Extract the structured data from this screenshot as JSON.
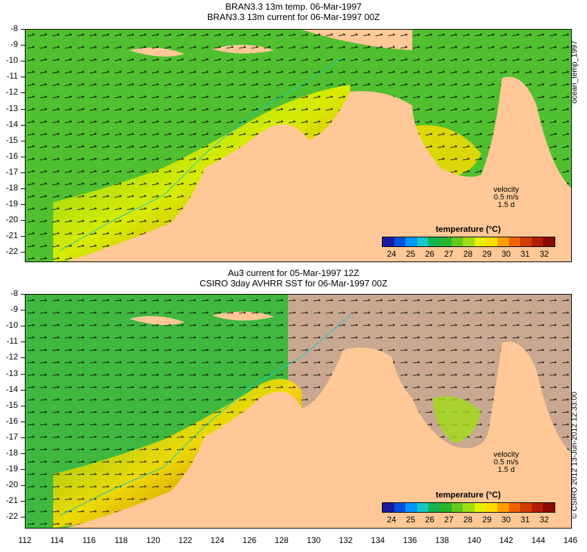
{
  "top": {
    "title1": "BRAN3.3 13m temp. 06-Mar-1997",
    "title2": "BRAN3.3 13m current for 06-Mar-1997 00Z",
    "side_label": "ocean_temp_1997",
    "velocity": {
      "label": "velocity",
      "scale": "0.5 m/s",
      "duration": "1.5 d"
    },
    "colorbar_title": "temperature (°C)"
  },
  "bottom": {
    "title1": "Au3 current for 05-Mar-1997 12Z",
    "title2": "CSIRO 3day AVHRR SST for 06-Mar-1997 00Z",
    "side_label": "© CSIRO 2012 13-Jun-2012 12:33:00",
    "velocity": {
      "label": "velocity",
      "scale": "0.5 m/s",
      "duration": "1.5 d"
    },
    "colorbar_title": "temperature (°C)"
  },
  "y_ticks": [
    "-8",
    "-9",
    "-10",
    "-11",
    "-12",
    "-13",
    "-14",
    "-15",
    "-16",
    "-17",
    "-18",
    "-19",
    "-20",
    "-21",
    "-22"
  ],
  "x_ticks": [
    "112",
    "114",
    "116",
    "118",
    "120",
    "122",
    "124",
    "126",
    "128",
    "130",
    "132",
    "134",
    "136",
    "138",
    "140",
    "142",
    "144",
    "146"
  ],
  "colorbar_labels": [
    "24",
    "25",
    "26",
    "27",
    "28",
    "29",
    "30",
    "31",
    "32"
  ],
  "colorbar_colors": [
    "#1a1aa0",
    "#0050e0",
    "#0096ff",
    "#14c8c8",
    "#14b450",
    "#2ab42a",
    "#64c81e",
    "#a0dc14",
    "#e6f000",
    "#ffdc00",
    "#ffa000",
    "#f06400",
    "#d23c00",
    "#b41e00",
    "#8c0a00"
  ],
  "colors": {
    "land": "#ffc896",
    "nodata": "#c8a890",
    "ocean_warm": "#e0b000",
    "ocean_mid": "#50c030",
    "arrow": "#000000"
  }
}
